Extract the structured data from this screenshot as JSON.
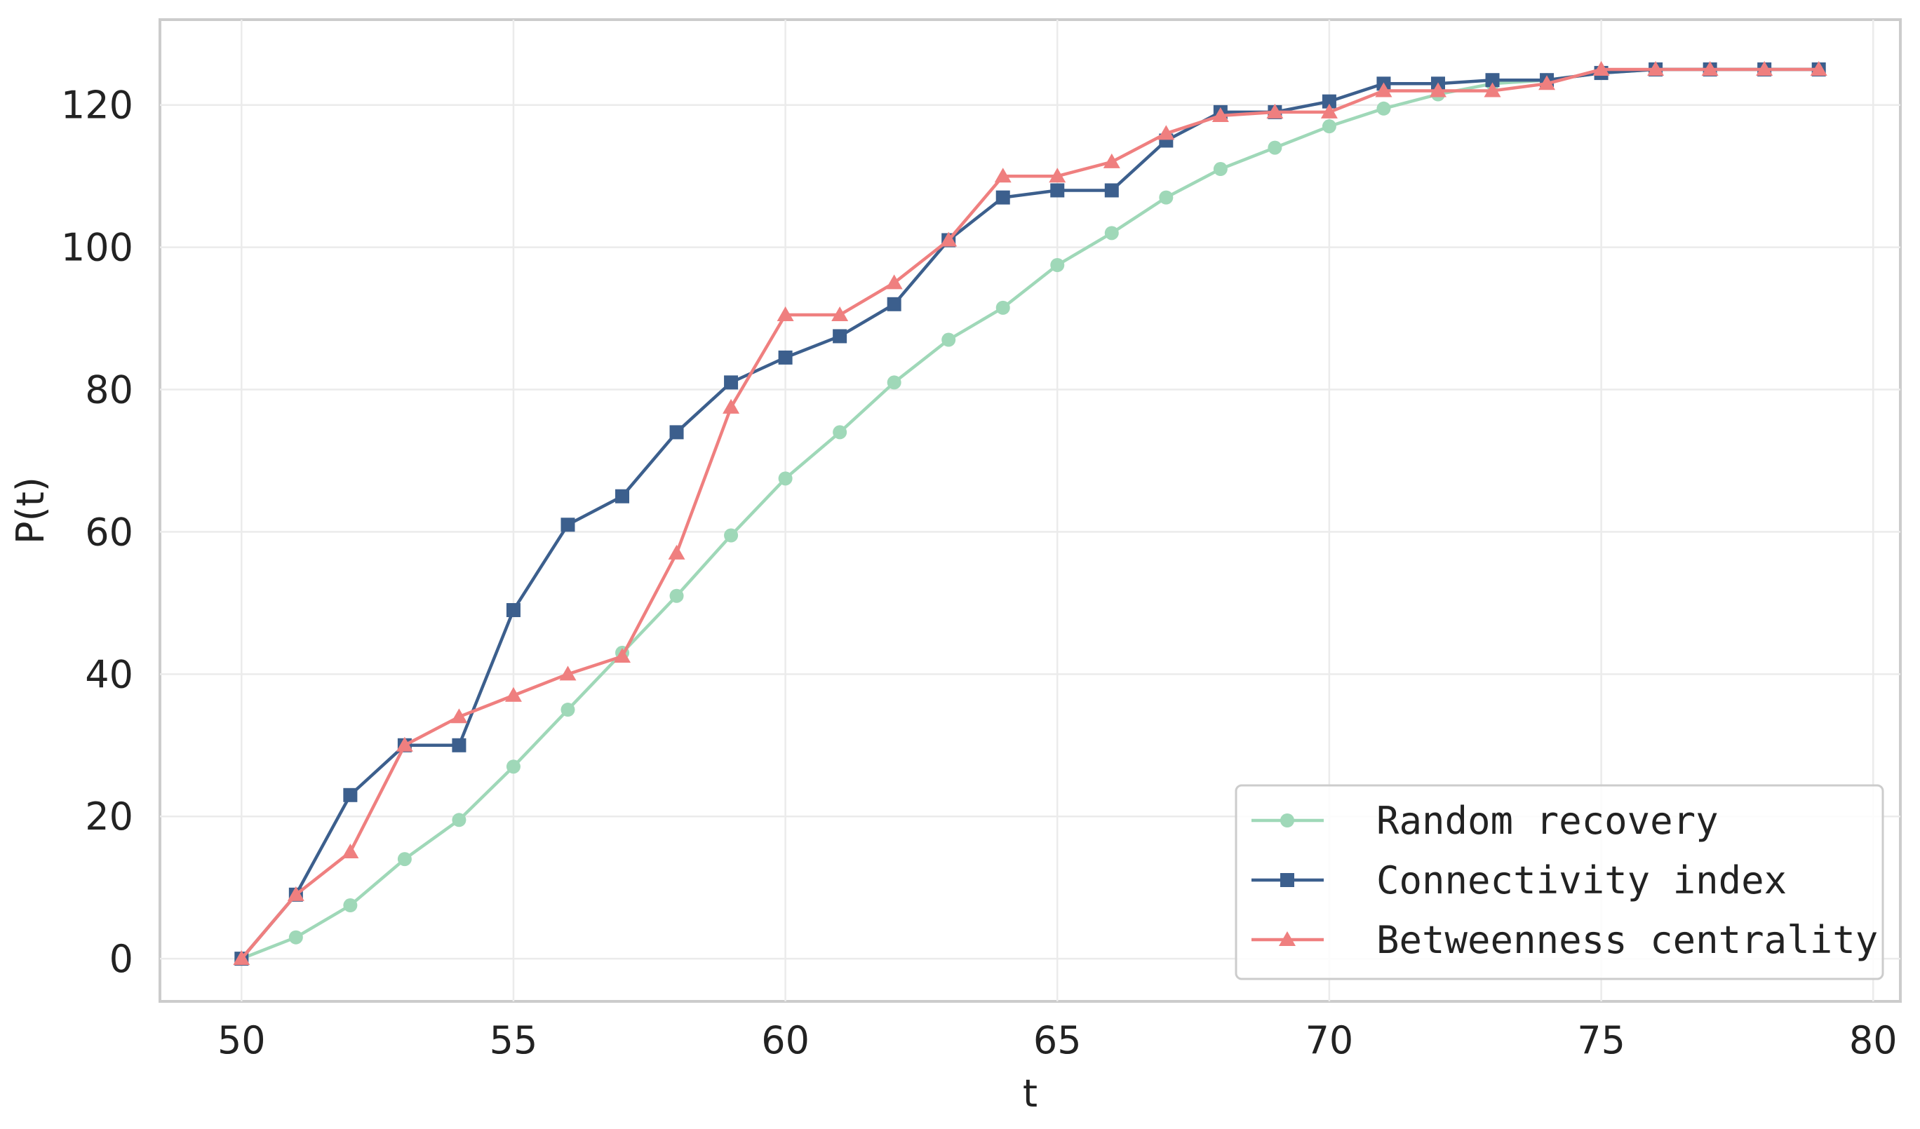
{
  "chart_data": {
    "type": "line",
    "title": "",
    "xlabel": "t",
    "ylabel": "P(t)",
    "xlim": [
      48.5,
      80.5
    ],
    "ylim": [
      -6,
      132
    ],
    "xticks": [
      50,
      55,
      60,
      65,
      70,
      75,
      80
    ],
    "yticks": [
      0,
      20,
      40,
      60,
      80,
      100,
      120
    ],
    "grid": true,
    "legend_position": "bottom-right",
    "x": [
      50,
      51,
      52,
      53,
      54,
      55,
      56,
      57,
      58,
      59,
      60,
      61,
      62,
      63,
      64,
      65,
      66,
      67,
      68,
      69,
      70,
      71,
      72,
      73,
      74,
      75,
      76,
      77,
      78,
      79
    ],
    "series": [
      {
        "name": "Random recovery",
        "color": "#9fd8b8",
        "marker": "circle",
        "values": [
          0,
          3,
          7.5,
          14,
          19.5,
          27,
          35,
          43,
          51,
          59.5,
          67.5,
          74,
          81,
          87,
          91.5,
          97.5,
          102,
          107,
          111,
          114,
          117,
          119.5,
          121.5,
          123,
          123.5,
          124.5,
          125,
          125,
          125,
          125
        ]
      },
      {
        "name": "Connectivity index",
        "color": "#3c5f8d",
        "marker": "square",
        "values": [
          0,
          9,
          23,
          30,
          30,
          49,
          61,
          65,
          74,
          81,
          84.5,
          87.5,
          92,
          101,
          107,
          108,
          108,
          115,
          119,
          119,
          120.5,
          123,
          123,
          123.5,
          123.5,
          124.5,
          125,
          125,
          125,
          125
        ]
      },
      {
        "name": "Betweenness centrality",
        "color": "#ef7f7f",
        "marker": "triangle",
        "values": [
          0,
          9,
          15,
          30,
          34,
          37,
          40,
          42.5,
          57,
          77.5,
          90.5,
          90.5,
          95,
          101,
          110,
          110,
          112,
          116,
          118.5,
          119,
          119,
          122,
          122,
          122,
          123,
          125,
          125,
          125,
          125,
          125
        ]
      }
    ]
  }
}
